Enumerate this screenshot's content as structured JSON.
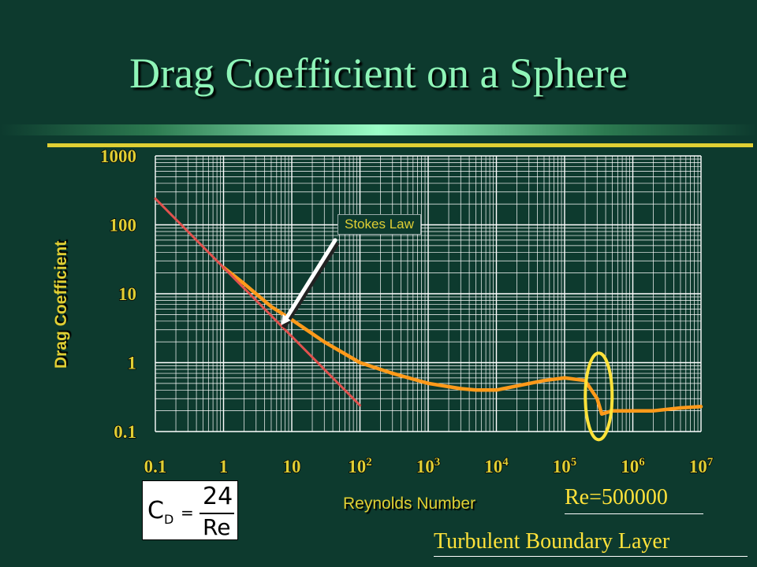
{
  "title": "Drag Coefficient on a Sphere",
  "callout": "Stokes Law",
  "formula": {
    "lhs": "C",
    "lhs_sub": "D",
    "eq": "=",
    "numerator": "24",
    "denominator": "Re"
  },
  "annotation_re": "Re=500000",
  "annotation_turbulent": "Turbulent Boundary Layer",
  "colors": {
    "background": "#0d3a2e",
    "title": "#8ff5b8",
    "labels": "#e0cf34",
    "orange_curve": "#ff9a1a",
    "stokes_line": "#e0524e",
    "highlight_ellipse": "#ffe23a"
  },
  "chart_data": {
    "type": "line",
    "title": "",
    "xlabel": "Reynolds Number",
    "ylabel": "Drag Coefficient",
    "x_scale": "log",
    "y_scale": "log",
    "xlim": [
      0.1,
      10000000
    ],
    "ylim": [
      0.1,
      1000
    ],
    "grid": true,
    "x_ticks": [
      {
        "value": 0.1,
        "base": "0.1",
        "exp": ""
      },
      {
        "value": 1,
        "base": "1",
        "exp": ""
      },
      {
        "value": 10,
        "base": "10",
        "exp": ""
      },
      {
        "value": 100,
        "base": "10",
        "exp": "2"
      },
      {
        "value": 1000,
        "base": "10",
        "exp": "3"
      },
      {
        "value": 10000,
        "base": "10",
        "exp": "4"
      },
      {
        "value": 100000,
        "base": "10",
        "exp": "5"
      },
      {
        "value": 1000000,
        "base": "10",
        "exp": "6"
      },
      {
        "value": 10000000,
        "base": "10",
        "exp": "7"
      }
    ],
    "y_ticks": [
      {
        "value": 1000,
        "label": "1000"
      },
      {
        "value": 100,
        "label": "100"
      },
      {
        "value": 10,
        "label": "10"
      },
      {
        "value": 1,
        "label": "1"
      },
      {
        "value": 0.1,
        "label": "0.1"
      }
    ],
    "series": [
      {
        "color": "#ff9a1a",
        "x": [
          1,
          2,
          5,
          10,
          30,
          100,
          300,
          1000,
          3000,
          5000,
          10000,
          50000,
          100000,
          200000,
          300000,
          350000,
          500000,
          1000000,
          2000000,
          5000000,
          10000000
        ],
        "y": [
          24,
          14,
          6.5,
          4.2,
          2.0,
          1.0,
          0.7,
          0.5,
          0.42,
          0.4,
          0.4,
          0.55,
          0.6,
          0.55,
          0.3,
          0.18,
          0.2,
          0.2,
          0.2,
          0.22,
          0.23
        ]
      },
      {
        "color": "#e0524e",
        "x": [
          0.1,
          100
        ],
        "y": [
          240,
          0.24
        ]
      }
    ],
    "highlight": {
      "x": 300000,
      "y": 0.4
    },
    "arrow_target": {
      "x": 7,
      "y": 3.5
    }
  }
}
